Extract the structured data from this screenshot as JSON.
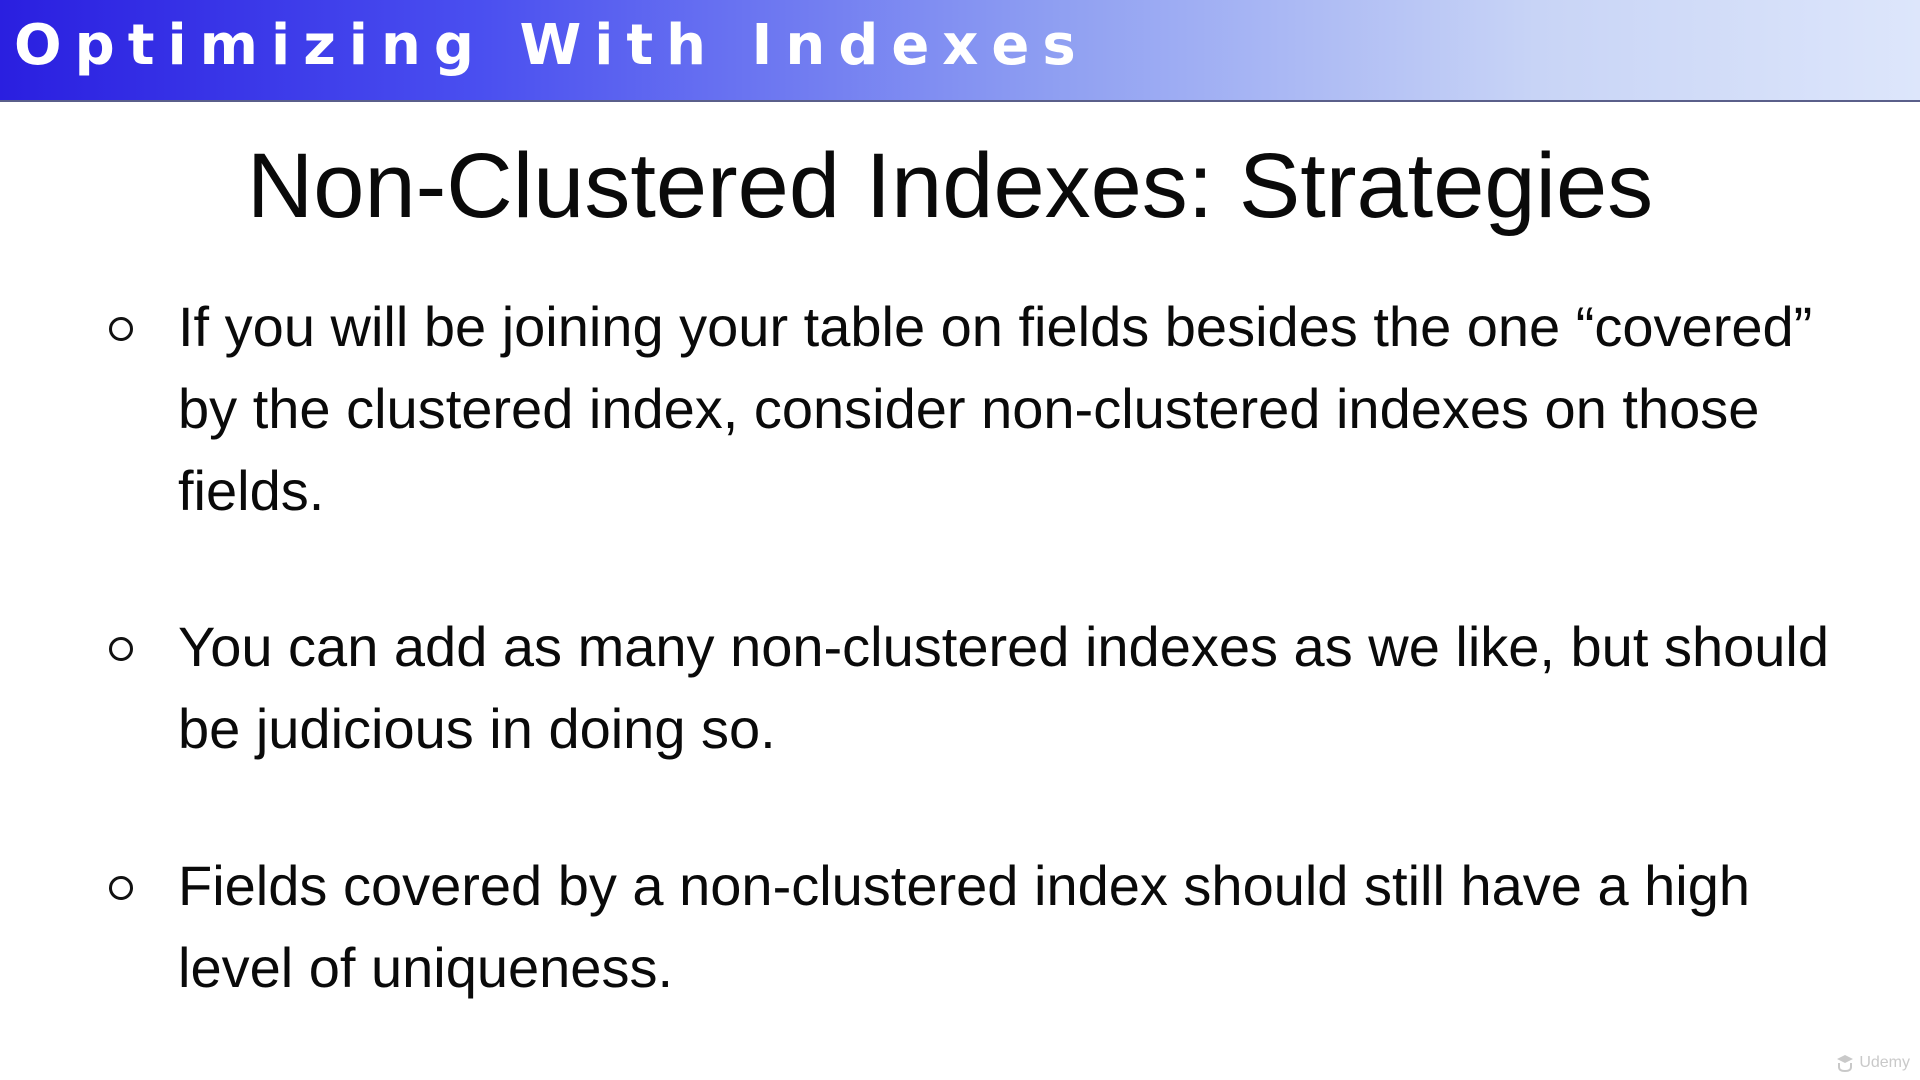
{
  "banner": {
    "title": "Optimizing With Indexes"
  },
  "slide": {
    "title": "Non-Clustered Indexes: Strategies",
    "bullets": [
      {
        "text": "If you will be joining your table on fields besides the one “covered” by the clustered index, consider non-clustered indexes on those fields."
      },
      {
        "text": "You can add as many non-clustered indexes as we like, but should be judicious in doing so."
      },
      {
        "text": "Fields covered by a non-clustered index should still have a high level of uniqueness."
      }
    ],
    "bullet_icon": "hollow-circle-icon"
  },
  "watermark": {
    "icon": "udemy-logo-icon",
    "label": "Udemy"
  },
  "colors": {
    "banner_start": "#2a1fe0",
    "banner_end": "#dde6fb",
    "text": "#0a0a0a",
    "background": "#ffffff"
  }
}
